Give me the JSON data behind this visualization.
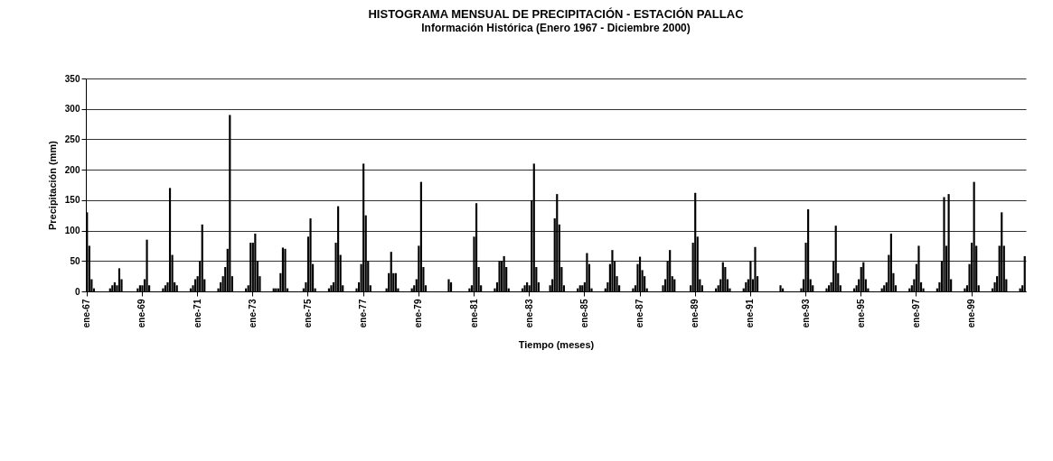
{
  "chart_data": {
    "type": "bar",
    "title": "HISTOGRAMA MENSUAL DE PRECIPITACIÓN - ESTACIÓN PALLAC",
    "subtitle": "Información Histórica (Enero 1967 - Diciembre 2000)",
    "xlabel": "Tiempo (meses)",
    "ylabel": "Precipitación (mm)",
    "categories": [
      "ene-67",
      null,
      null,
      null,
      null,
      null,
      null,
      null,
      null,
      null,
      null,
      null,
      null,
      null,
      null,
      null,
      null,
      null,
      null,
      null,
      null,
      null,
      null,
      null,
      "ene-69",
      null,
      null,
      null,
      null,
      null,
      null,
      null,
      null,
      null,
      null,
      null,
      null,
      null,
      null,
      null,
      null,
      null,
      null,
      null,
      null,
      null,
      null,
      null,
      "ene-71",
      null,
      null,
      null,
      null,
      null,
      null,
      null,
      null,
      null,
      null,
      null,
      null,
      null,
      null,
      null,
      null,
      null,
      null,
      null,
      null,
      null,
      null,
      null,
      "ene-73",
      null,
      null,
      null,
      null,
      null,
      null,
      null,
      null,
      null,
      null,
      null,
      null,
      null,
      null,
      null,
      null,
      null,
      null,
      null,
      null,
      null,
      null,
      null,
      "ene-75",
      null,
      null,
      null,
      null,
      null,
      null,
      null,
      null,
      null,
      null,
      null,
      null,
      null,
      null,
      null,
      null,
      null,
      null,
      null,
      null,
      null,
      null,
      null,
      "ene-77",
      null,
      null,
      null,
      null,
      null,
      null,
      null,
      null,
      null,
      null,
      null,
      null,
      null,
      null,
      null,
      null,
      null,
      null,
      null,
      null,
      null,
      null,
      null,
      "ene-79",
      null,
      null,
      null,
      null,
      null,
      null,
      null,
      null,
      null,
      null,
      null,
      null,
      null,
      null,
      null,
      null,
      null,
      null,
      null,
      null,
      null,
      null,
      null,
      "ene-81",
      null,
      null,
      null,
      null,
      null,
      null,
      null,
      null,
      null,
      null,
      null,
      null,
      null,
      null,
      null,
      null,
      null,
      null,
      null,
      null,
      null,
      null,
      null,
      "ene-83",
      null,
      null,
      null,
      null,
      null,
      null,
      null,
      null,
      null,
      null,
      null,
      null,
      null,
      null,
      null,
      null,
      null,
      null,
      null,
      null,
      null,
      null,
      null,
      "ene-85",
      null,
      null,
      null,
      null,
      null,
      null,
      null,
      null,
      null,
      null,
      null,
      null,
      null,
      null,
      null,
      null,
      null,
      null,
      null,
      null,
      null,
      null,
      null,
      "ene-87",
      null,
      null,
      null,
      null,
      null,
      null,
      null,
      null,
      null,
      null,
      null,
      null,
      null,
      null,
      null,
      null,
      null,
      null,
      null,
      null,
      null,
      null,
      null,
      "ene-89",
      null,
      null,
      null,
      null,
      null,
      null,
      null,
      null,
      null,
      null,
      null,
      null,
      null,
      null,
      null,
      null,
      null,
      null,
      null,
      null,
      null,
      null,
      null,
      "ene-91",
      null,
      null,
      null,
      null,
      null,
      null,
      null,
      null,
      null,
      null,
      null,
      null,
      null,
      null,
      null,
      null,
      null,
      null,
      null,
      null,
      null,
      null,
      null,
      "ene-93",
      null,
      null,
      null,
      null,
      null,
      null,
      null,
      null,
      null,
      null,
      null,
      null,
      null,
      null,
      null,
      null,
      null,
      null,
      null,
      null,
      null,
      null,
      null,
      "ene-95",
      null,
      null,
      null,
      null,
      null,
      null,
      null,
      null,
      null,
      null,
      null,
      null,
      null,
      null,
      null,
      null,
      null,
      null,
      null,
      null,
      null,
      null,
      null,
      "ene-97",
      null,
      null,
      null,
      null,
      null,
      null,
      null,
      null,
      null,
      null,
      null,
      null,
      null,
      null,
      null,
      null,
      null,
      null,
      null,
      null,
      null,
      null,
      null,
      "ene-99",
      null,
      null,
      null,
      null,
      null,
      null,
      null,
      null,
      null,
      null,
      null,
      null,
      null,
      null,
      null,
      null,
      null,
      null,
      null,
      null,
      null,
      null,
      null
    ],
    "series": [
      {
        "color": "#000000",
        "values": [
          130,
          75,
          20,
          5,
          0,
          0,
          0,
          0,
          0,
          0,
          5,
          10,
          15,
          10,
          38,
          20,
          0,
          0,
          0,
          0,
          0,
          0,
          5,
          10,
          10,
          20,
          85,
          10,
          0,
          0,
          0,
          0,
          0,
          5,
          10,
          15,
          170,
          60,
          15,
          10,
          0,
          0,
          0,
          0,
          0,
          5,
          10,
          20,
          25,
          50,
          110,
          20,
          0,
          0,
          0,
          0,
          0,
          5,
          15,
          25,
          40,
          70,
          290,
          25,
          0,
          0,
          0,
          0,
          0,
          5,
          10,
          80,
          80,
          95,
          50,
          25,
          0,
          0,
          0,
          0,
          0,
          5,
          5,
          5,
          30,
          72,
          70,
          5,
          0,
          0,
          0,
          0,
          0,
          0,
          5,
          15,
          90,
          120,
          45,
          5,
          0,
          0,
          0,
          0,
          0,
          5,
          10,
          15,
          80,
          140,
          60,
          10,
          0,
          0,
          0,
          0,
          0,
          5,
          15,
          45,
          210,
          125,
          50,
          10,
          0,
          0,
          0,
          0,
          0,
          0,
          5,
          30,
          65,
          30,
          30,
          5,
          0,
          0,
          0,
          0,
          0,
          5,
          10,
          20,
          75,
          180,
          40,
          10,
          0,
          0,
          0,
          0,
          0,
          0,
          0,
          0,
          0,
          20,
          15,
          0,
          0,
          0,
          0,
          0,
          0,
          0,
          5,
          10,
          90,
          145,
          40,
          10,
          0,
          0,
          0,
          0,
          0,
          5,
          15,
          50,
          50,
          58,
          40,
          5,
          0,
          0,
          0,
          0,
          0,
          5,
          10,
          15,
          10,
          150,
          210,
          40,
          15,
          0,
          0,
          0,
          0,
          10,
          20,
          120,
          160,
          110,
          40,
          10,
          0,
          0,
          0,
          0,
          0,
          5,
          10,
          10,
          15,
          63,
          45,
          5,
          0,
          0,
          0,
          0,
          0,
          5,
          15,
          45,
          68,
          50,
          25,
          10,
          0,
          0,
          0,
          0,
          0,
          5,
          10,
          45,
          57,
          35,
          25,
          5,
          0,
          0,
          0,
          0,
          0,
          0,
          10,
          20,
          50,
          68,
          25,
          20,
          0,
          0,
          0,
          0,
          0,
          0,
          10,
          80,
          162,
          90,
          20,
          10,
          0,
          0,
          0,
          0,
          0,
          5,
          10,
          20,
          48,
          40,
          20,
          5,
          0,
          0,
          0,
          0,
          0,
          5,
          15,
          20,
          50,
          20,
          73,
          25,
          0,
          0,
          0,
          0,
          0,
          0,
          0,
          0,
          0,
          10,
          5,
          0,
          0,
          0,
          0,
          0,
          0,
          0,
          5,
          20,
          80,
          135,
          20,
          10,
          0,
          0,
          0,
          0,
          0,
          5,
          10,
          15,
          50,
          108,
          30,
          10,
          0,
          0,
          0,
          0,
          0,
          5,
          10,
          20,
          40,
          48,
          20,
          5,
          0,
          0,
          0,
          0,
          0,
          5,
          10,
          15,
          60,
          95,
          30,
          10,
          0,
          0,
          0,
          0,
          0,
          5,
          10,
          20,
          45,
          75,
          15,
          5,
          0,
          0,
          0,
          0,
          0,
          5,
          15,
          50,
          155,
          75,
          160,
          20,
          0,
          0,
          0,
          0,
          0,
          5,
          10,
          45,
          80,
          180,
          75,
          10,
          0,
          0,
          0,
          0,
          0,
          5,
          15,
          25,
          75,
          130,
          75,
          20,
          0,
          0,
          0,
          0,
          0,
          5,
          10,
          58
        ]
      }
    ],
    "ylim": [
      0,
      350
    ],
    "yticks": [
      0,
      50,
      100,
      150,
      200,
      250,
      300,
      350
    ],
    "grid": "y"
  }
}
